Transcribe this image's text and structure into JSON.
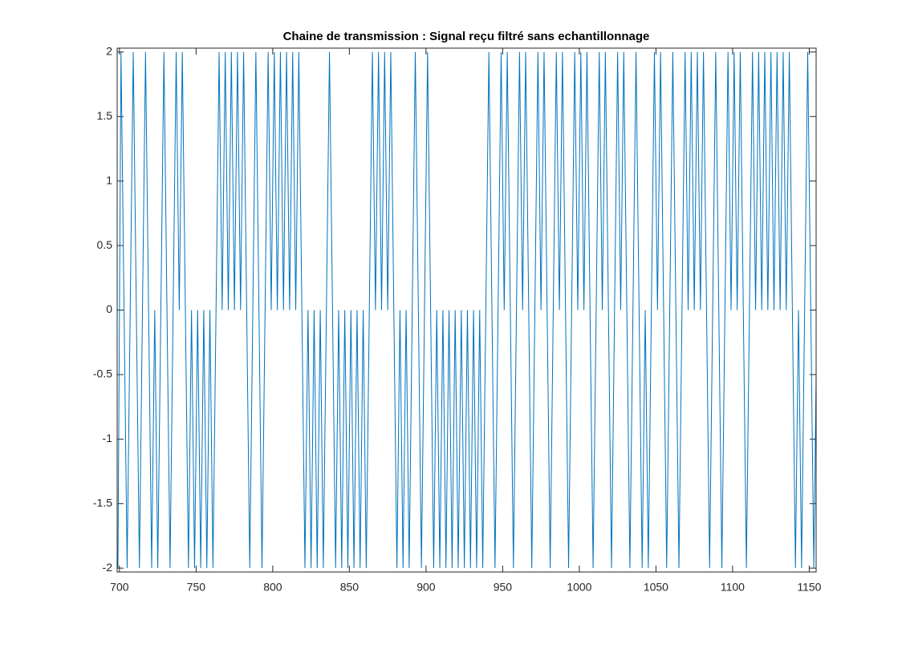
{
  "chart_data": {
    "type": "line",
    "title": "Chaine de transmission : Signal reçu filtré sans echantillonnage",
    "x": [
      699,
      701,
      703,
      705,
      707,
      709,
      711,
      713,
      715,
      717,
      719,
      721,
      723,
      725,
      727,
      729,
      731,
      733,
      735,
      737,
      739,
      741,
      743,
      745,
      747,
      749,
      751,
      753,
      755,
      757,
      759,
      761,
      763,
      765,
      767,
      769,
      771,
      773,
      775,
      777,
      779,
      781,
      783,
      785,
      787,
      789,
      791,
      793,
      795,
      797,
      799,
      801,
      803,
      805,
      807,
      809,
      811,
      813,
      815,
      817,
      819,
      821,
      823,
      825,
      827,
      829,
      831,
      833,
      835,
      837,
      839,
      841,
      843,
      845,
      847,
      849,
      851,
      853,
      855,
      857,
      859,
      861,
      863,
      865,
      867,
      869,
      871,
      873,
      875,
      877,
      879,
      881,
      883,
      885,
      887,
      889,
      891,
      893,
      895,
      897,
      899,
      901,
      903,
      905,
      907,
      909,
      911,
      913,
      915,
      917,
      919,
      921,
      923,
      925,
      927,
      929,
      931,
      933,
      935,
      937,
      939,
      941,
      943,
      945,
      947,
      949,
      951,
      953,
      955,
      957,
      959,
      961,
      963,
      965,
      967,
      969,
      971,
      973,
      975,
      977,
      979,
      981,
      983,
      985,
      987,
      989,
      991,
      993,
      995,
      997,
      999,
      1001,
      1003,
      1005,
      1007,
      1009,
      1011,
      1013,
      1015,
      1017,
      1019,
      1021,
      1023,
      1025,
      1027,
      1029,
      1031,
      1033,
      1035,
      1037,
      1039,
      1041,
      1043,
      1045,
      1047,
      1049,
      1051,
      1053,
      1055,
      1057,
      1059,
      1061,
      1063,
      1065,
      1067,
      1069,
      1071,
      1073,
      1075,
      1077,
      1079,
      1081,
      1083,
      1085,
      1087,
      1089,
      1091,
      1093,
      1095,
      1097,
      1099,
      1101,
      1103,
      1105,
      1107,
      1109,
      1111,
      1113,
      1115,
      1117,
      1119,
      1121,
      1123,
      1125,
      1127,
      1129,
      1131,
      1133,
      1135,
      1137,
      1139,
      1141,
      1143,
      1145,
      1147,
      1149,
      1151,
      1153,
      1155
    ],
    "series": [
      {
        "color": "#0072bd",
        "values": [
          -2,
          2,
          0,
          -2,
          0,
          2,
          0,
          -2,
          0,
          2,
          0,
          -2,
          0,
          -2,
          0,
          2,
          0,
          -2,
          0,
          2,
          0,
          2,
          0,
          -2,
          0,
          -2,
          0,
          -2,
          0,
          -2,
          0,
          -2,
          0,
          2,
          0,
          2,
          0,
          2,
          0,
          2,
          0,
          2,
          0,
          -2,
          0,
          2,
          0,
          -2,
          0,
          2,
          0,
          2,
          0,
          2,
          0,
          2,
          0,
          2,
          0,
          2,
          0,
          -2,
          0,
          -2,
          0,
          -2,
          0,
          -2,
          0,
          2,
          0,
          -2,
          0,
          -2,
          0,
          -2,
          0,
          -2,
          0,
          -2,
          0,
          -2,
          0,
          2,
          0,
          2,
          0,
          2,
          0,
          2,
          0,
          -2,
          0,
          -2,
          0,
          -2,
          0,
          2,
          0,
          -2,
          0,
          2,
          0,
          -2,
          0,
          -2,
          0,
          -2,
          0,
          -2,
          0,
          -2,
          0,
          -2,
          0,
          -2,
          0,
          -2,
          0,
          -2,
          0,
          2,
          0,
          -2,
          0,
          2,
          0,
          2,
          0,
          -2,
          0,
          2,
          0,
          2,
          0,
          -2,
          0,
          2,
          0,
          2,
          0,
          -2,
          0,
          2,
          0,
          2,
          0,
          -2,
          0,
          2,
          0,
          2,
          0,
          2,
          0,
          -2,
          0,
          2,
          0,
          2,
          0,
          -2,
          0,
          2,
          0,
          2,
          0,
          -2,
          0,
          2,
          0,
          -2,
          0,
          -2,
          0,
          2,
          0,
          2,
          0,
          -2,
          0,
          2,
          0,
          -2,
          0,
          2,
          0,
          2,
          0,
          2,
          0,
          2,
          0,
          -2,
          0,
          2,
          0,
          -2,
          0,
          2,
          0,
          2,
          0,
          2,
          0,
          -2,
          0,
          2,
          0,
          2,
          0,
          2,
          0,
          2,
          0,
          2,
          0,
          2,
          0,
          2,
          0,
          -2,
          0,
          -2,
          0,
          2,
          0,
          -2,
          0
        ]
      }
    ],
    "xlim": [
      698.5,
      1154.5
    ],
    "ylim": [
      -2.03,
      2.03
    ],
    "xticks": [
      700,
      750,
      800,
      850,
      900,
      950,
      1000,
      1050,
      1100,
      1150
    ],
    "yticks": [
      -2,
      -1.5,
      -1,
      -0.5,
      0,
      0.5,
      1,
      1.5,
      2
    ],
    "grid": false
  }
}
